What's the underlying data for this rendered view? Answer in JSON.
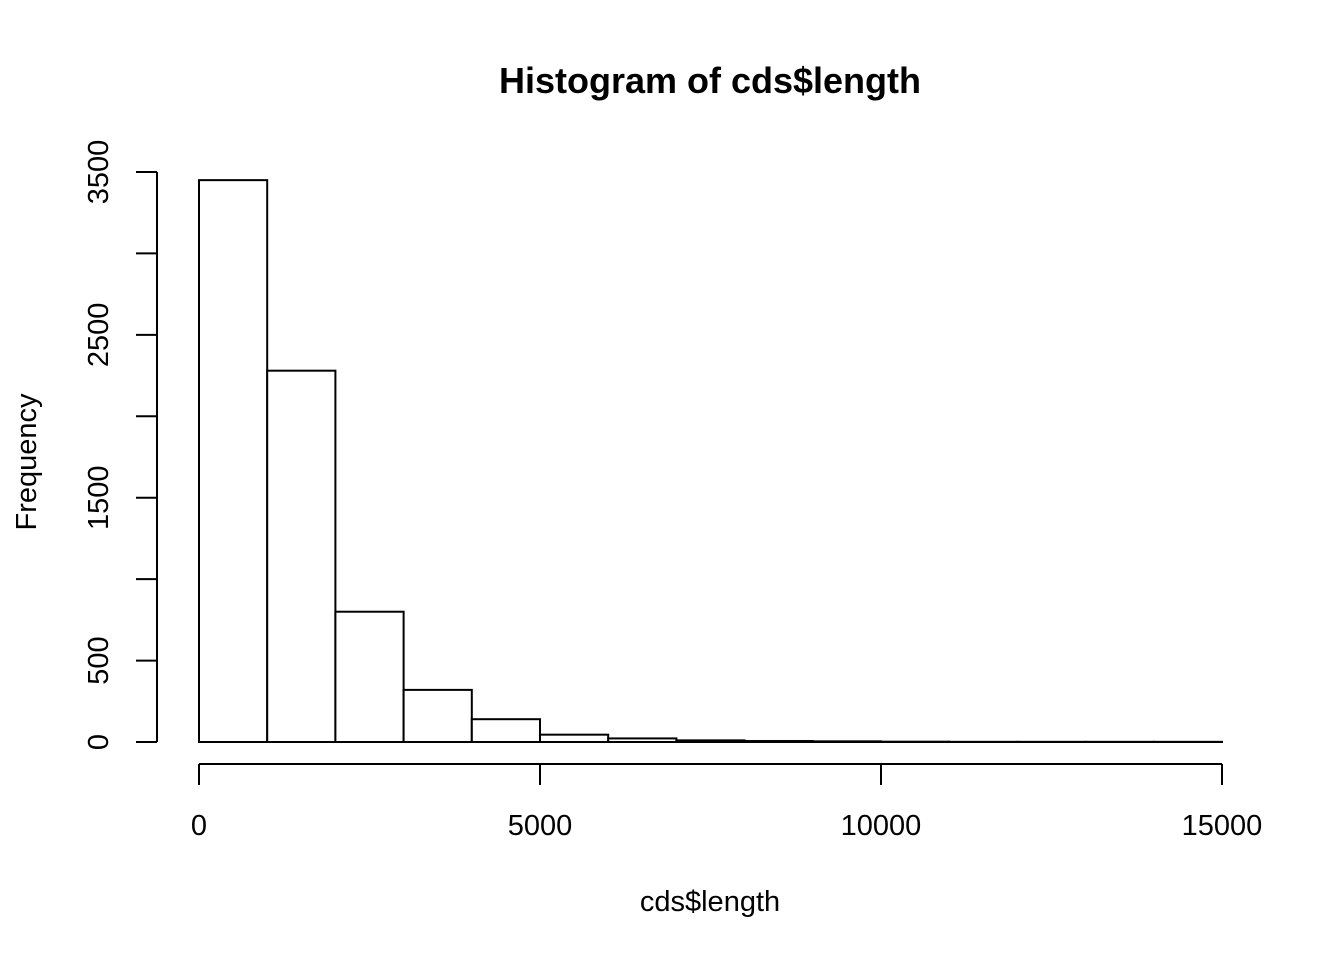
{
  "chart_data": {
    "type": "bar",
    "title": "Histogram of cds$length",
    "xlabel": "cds$length",
    "ylabel": "Frequency",
    "bin_edges": [
      0,
      1000,
      2000,
      3000,
      4000,
      5000,
      6000,
      7000,
      8000,
      9000,
      10000,
      11000,
      12000,
      13000,
      14000,
      15000
    ],
    "values": [
      3450,
      2280,
      800,
      320,
      140,
      45,
      22,
      10,
      6,
      4,
      2,
      1,
      1,
      1,
      1
    ],
    "xlim": [
      0,
      15000
    ],
    "ylim": [
      0,
      3500
    ],
    "x_ticks": [
      0,
      5000,
      10000,
      15000
    ],
    "y_ticks": [
      0,
      500,
      1000,
      1500,
      2000,
      2500,
      3000,
      3500
    ],
    "y_tick_labels": [
      "0",
      "500",
      "",
      "1500",
      "",
      "2500",
      "",
      "3500"
    ],
    "grid": false,
    "bar_fill": "#ffffff",
    "bar_stroke": "#000000"
  }
}
